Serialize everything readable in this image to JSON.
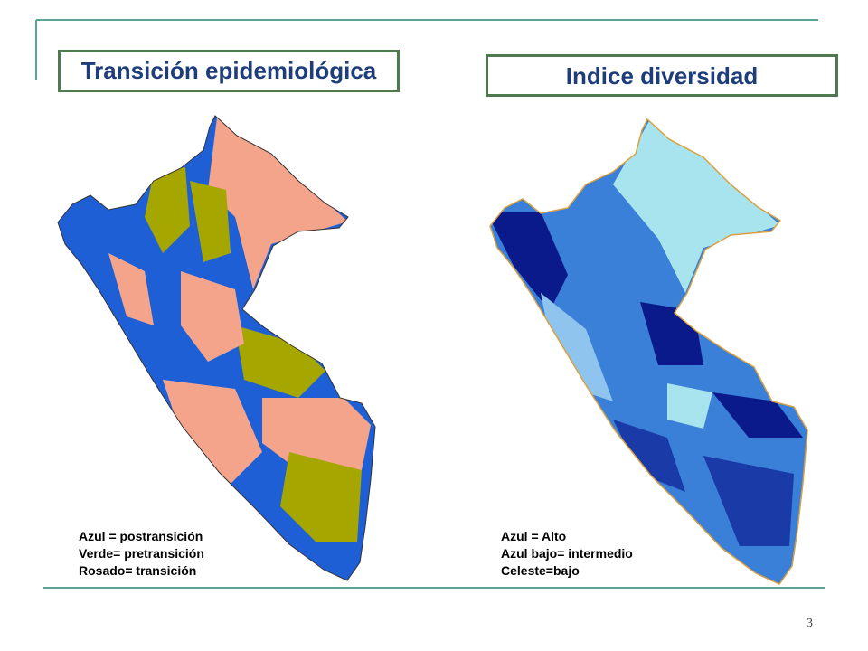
{
  "slide": {
    "left_title": "Transición epidemiológica",
    "right_title": "Indice diversidad",
    "left_legend": [
      "Azul = postransición",
      "Verde= pretransición",
      "Rosado= transición"
    ],
    "right_legend": [
      "Azul  = Alto",
      "Azul bajo= intermedio",
      "Celeste=bajo"
    ],
    "page_number": "3"
  }
}
